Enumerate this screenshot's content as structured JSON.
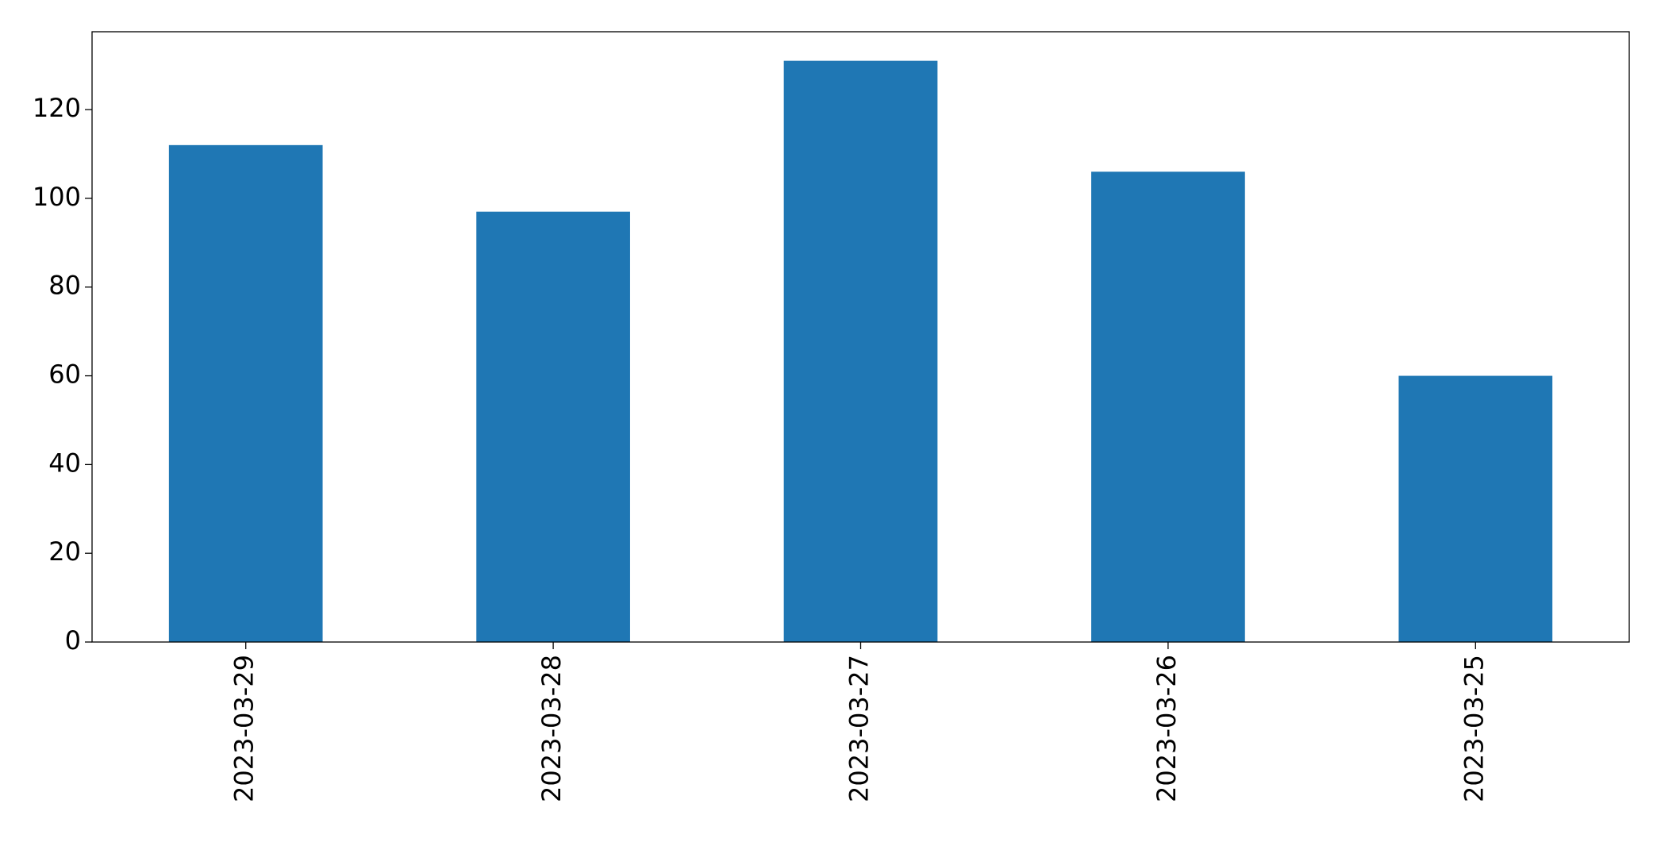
{
  "chart_data": {
    "type": "bar",
    "categories": [
      "2023-03-29",
      "2023-03-28",
      "2023-03-27",
      "2023-03-26",
      "2023-03-25"
    ],
    "values": [
      112,
      97,
      131,
      106,
      60
    ],
    "color": "#1f77b4",
    "ylim": [
      0,
      137.55
    ],
    "yticks": [
      0,
      20,
      40,
      60,
      80,
      100,
      120
    ],
    "grid": false
  }
}
